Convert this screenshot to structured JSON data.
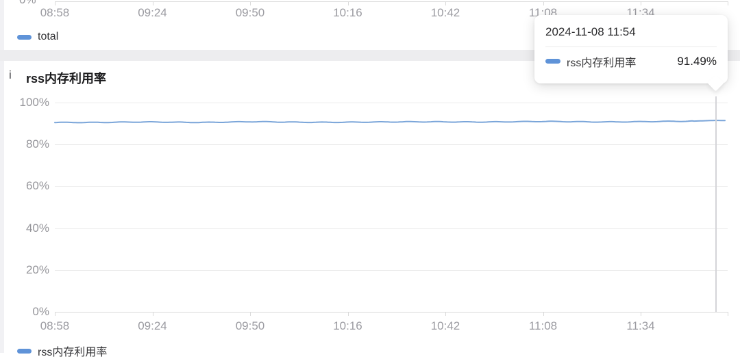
{
  "colors": {
    "series_line": "#7aa5d9",
    "marker_blue": "#5f93d8",
    "axis_text": "#9b9ba1",
    "grid": "#ececec",
    "divider_band": "#ededef"
  },
  "top_chart": {
    "partial_y_label": "0%",
    "legend": [
      {
        "label": "total",
        "color": "#5f93d8"
      }
    ]
  },
  "panel": {
    "info_icon": "i",
    "title": "rss内存利用率",
    "legend": [
      {
        "label": "rss内存利用率",
        "color": "#5f93d8"
      }
    ]
  },
  "tooltip": {
    "timestamp": "2024-11-08 11:54",
    "series_label": "rss内存利用率",
    "value": "91.49%",
    "marker_color": "#5f93d8"
  },
  "chart_data": [
    {
      "type": "line",
      "title": "total (upper chart, mostly cropped out of view)",
      "x_ticks": [
        "08:58",
        "09:24",
        "09:50",
        "10:16",
        "10:42",
        "11:08",
        "11:34"
      ],
      "ylabel": "",
      "visible_y_tick": "0%",
      "series": [
        {
          "name": "total",
          "color": "#5f93d8",
          "values": []
        }
      ],
      "legend_position": "bottom"
    },
    {
      "type": "line",
      "title": "rss内存利用率",
      "x_ticks": [
        "08:58",
        "09:24",
        "09:50",
        "10:16",
        "10:42",
        "11:08",
        "11:34"
      ],
      "y_ticks": [
        "100%",
        "80%",
        "60%",
        "40%",
        "20%",
        "0%"
      ],
      "ylim": [
        0,
        100
      ],
      "grid": true,
      "legend_position": "bottom",
      "series": [
        {
          "name": "rss内存利用率",
          "color": "#7aa5d9",
          "points_minute_value": [
            [
              0,
              90.6
            ],
            [
              13,
              90.5
            ],
            [
              26,
              90.7
            ],
            [
              39,
              90.6
            ],
            [
              52,
              90.8
            ],
            [
              65,
              90.6
            ],
            [
              78,
              90.7
            ],
            [
              91,
              90.7
            ],
            [
              104,
              90.8
            ],
            [
              117,
              90.8
            ],
            [
              130,
              90.9
            ],
            [
              143,
              90.8
            ],
            [
              156,
              90.9
            ],
            [
              168,
              91.0
            ],
            [
              176,
              91.49
            ],
            [
              178.5,
              91.4
            ]
          ]
        }
      ],
      "cursor": {
        "time": "11:54",
        "minute_offset": 176,
        "value": 91.49
      }
    }
  ],
  "layout_times": {
    "x0_label": "08:58",
    "minutes_per_tick": 26
  }
}
